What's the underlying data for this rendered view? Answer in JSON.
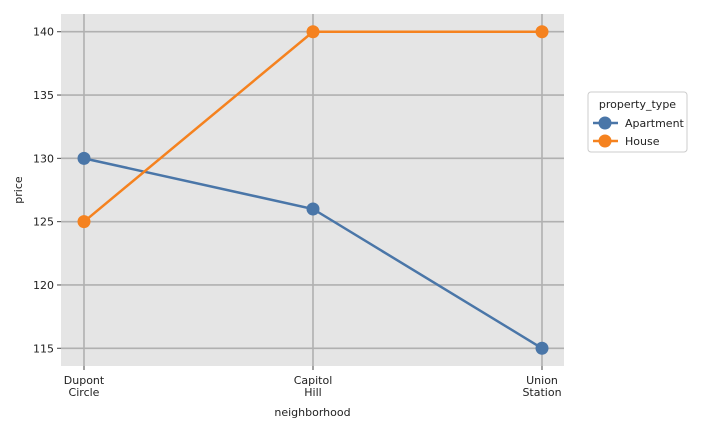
{
  "chart_data": {
    "type": "line",
    "categories": [
      "Dupont\nCircle",
      "Capitol\nHill",
      "Union\nStation"
    ],
    "series": [
      {
        "name": "Apartment",
        "values": [
          130,
          126,
          115
        ],
        "color": "#4a76a8"
      },
      {
        "name": "House",
        "values": [
          125,
          140,
          140
        ],
        "color": "#f5821f"
      }
    ],
    "title": "",
    "xlabel": "neighborhood",
    "ylabel": "price",
    "ylim": [
      113.6,
      141.4
    ],
    "yticks": [
      115,
      120,
      125,
      130,
      135,
      140
    ],
    "grid": true,
    "legend": {
      "title": "property_type",
      "placement": "right"
    },
    "colors": {
      "panel_bg": "#e5e5e5",
      "grid": "#b0b0b0"
    }
  }
}
